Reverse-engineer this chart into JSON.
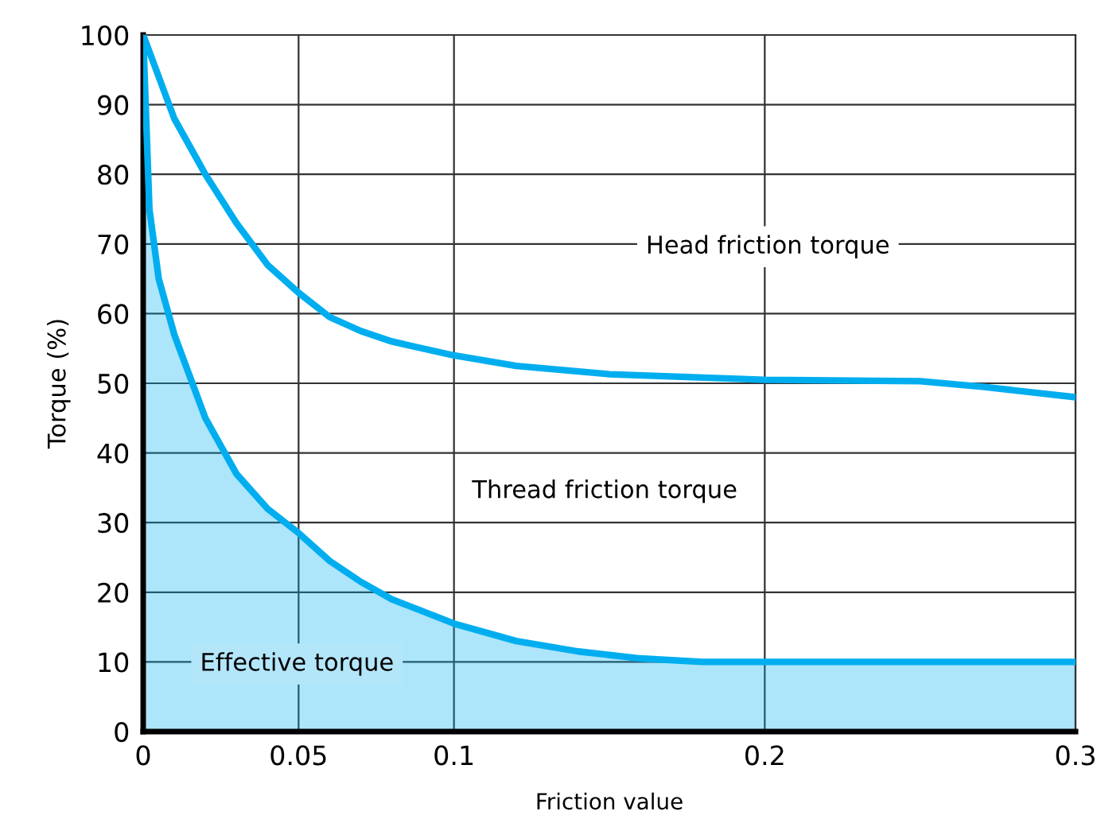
{
  "chart_data": {
    "type": "line",
    "xlabel": "Friction value",
    "ylabel": "Torque (%)",
    "xlim": [
      0,
      0.3
    ],
    "ylim": [
      0,
      100
    ],
    "xticks": [
      0,
      0.05,
      0.1,
      0.2,
      0.3
    ],
    "yticks": [
      0,
      10,
      20,
      30,
      40,
      50,
      60,
      70,
      80,
      90,
      100
    ],
    "grid": true,
    "legend": false,
    "marker": "none",
    "line_style": "solid",
    "series": [
      {
        "color": "#00aeef",
        "x": [
          0,
          0.01,
          0.02,
          0.03,
          0.04,
          0.05,
          0.06,
          0.07,
          0.08,
          0.1,
          0.12,
          0.15,
          0.2,
          0.25,
          0.27,
          0.3
        ],
        "values": [
          100,
          88,
          80,
          73,
          67,
          63,
          59.5,
          57.5,
          56,
          54,
          52.5,
          51.3,
          50.5,
          50.3,
          49.5,
          48
        ]
      },
      {
        "type": "area",
        "color": "#00aeef",
        "x": [
          0,
          0.002,
          0.005,
          0.01,
          0.02,
          0.03,
          0.04,
          0.05,
          0.06,
          0.07,
          0.08,
          0.1,
          0.12,
          0.14,
          0.16,
          0.18,
          0.2,
          0.3
        ],
        "values": [
          100,
          75,
          65,
          57,
          45,
          37,
          32,
          28.5,
          24.5,
          21.5,
          19,
          15.5,
          13,
          11.5,
          10.5,
          10,
          10,
          10
        ]
      }
    ],
    "annotations": [
      "Head friction torque",
      "Thread friction torque",
      "Effective torque"
    ]
  }
}
